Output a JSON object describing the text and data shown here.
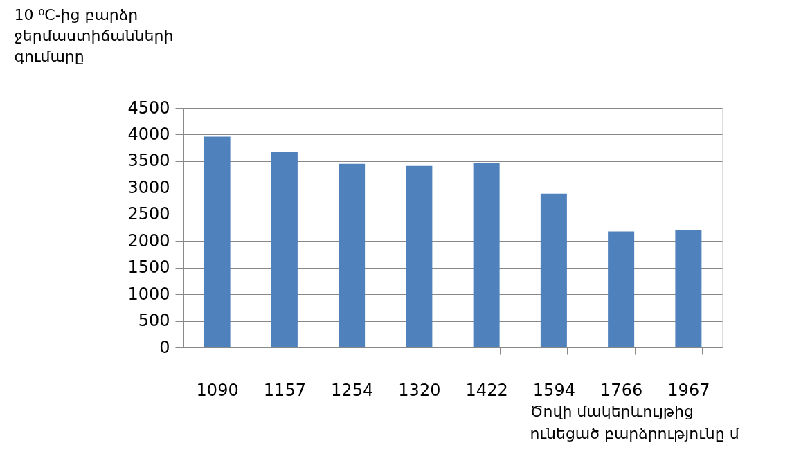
{
  "chart_data": {
    "type": "bar",
    "categories": [
      "1090",
      "1157",
      "1254",
      "1320",
      "1422",
      "1594",
      "1766",
      "1967"
    ],
    "values": [
      3960,
      3680,
      3450,
      3410,
      3460,
      2890,
      2180,
      2200
    ],
    "color": "#4f81bd",
    "ylabel": "10 ⁰C-ից բարձր ջերմաստիճանների գումարը",
    "xlabel": "Ծովի մակերևույթից ունեցած բարձրությունը մ",
    "ylim": [
      0,
      4500
    ],
    "yticks": [
      0,
      500,
      1000,
      1500,
      2000,
      2500,
      3000,
      3500,
      4000,
      4500
    ],
    "grid": "y"
  }
}
